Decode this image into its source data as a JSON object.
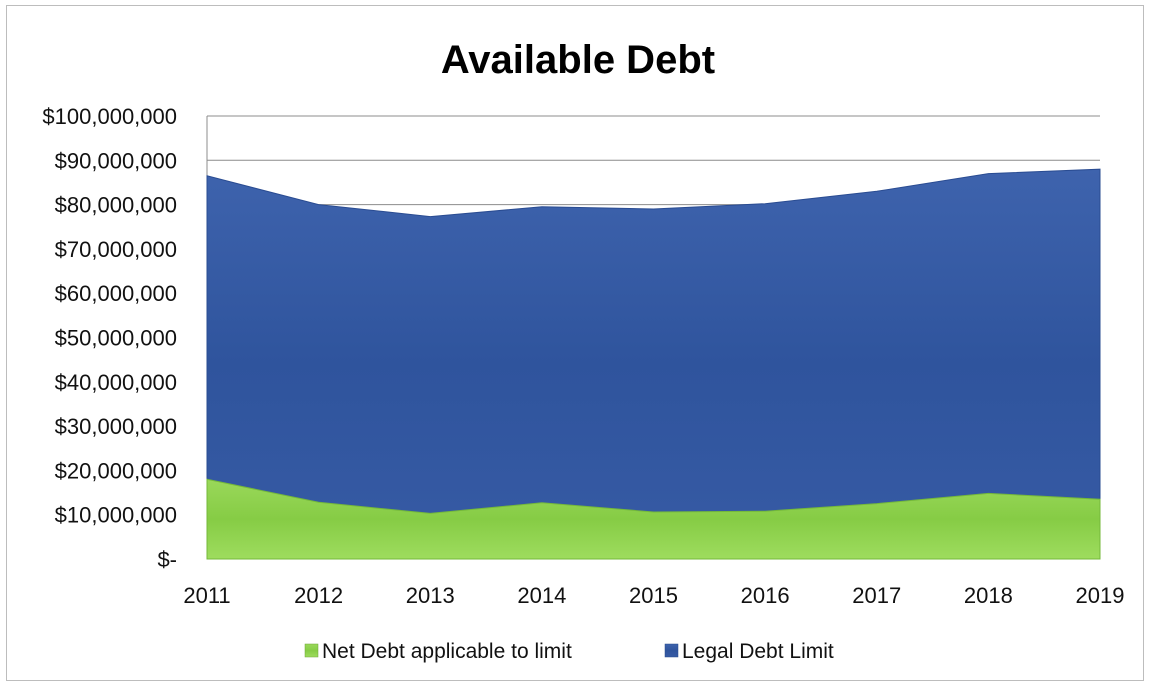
{
  "chart_data": {
    "type": "area",
    "title": "Available Debt",
    "x": [
      "2011",
      "2012",
      "2013",
      "2014",
      "2015",
      "2016",
      "2017",
      "2018",
      "2019"
    ],
    "series": [
      {
        "name": "Legal Debt Limit",
        "values": [
          86500000,
          80000000,
          77300000,
          79500000,
          79000000,
          80200000,
          83000000,
          87000000,
          88000000
        ],
        "color": "#3a5ea8"
      },
      {
        "name": "Net Debt applicable to limit",
        "values": [
          18000000,
          12800000,
          10300000,
          12700000,
          10600000,
          10800000,
          12500000,
          14800000,
          13500000
        ],
        "color": "#8fd14f"
      }
    ],
    "y_ticks": [
      {
        "value": 0,
        "label": "$-"
      },
      {
        "value": 10000000,
        "label": "$10,000,000"
      },
      {
        "value": 20000000,
        "label": "$20,000,000"
      },
      {
        "value": 30000000,
        "label": "$30,000,000"
      },
      {
        "value": 40000000,
        "label": "$40,000,000"
      },
      {
        "value": 50000000,
        "label": "$50,000,000"
      },
      {
        "value": 60000000,
        "label": "$60,000,000"
      },
      {
        "value": 70000000,
        "label": "$70,000,000"
      },
      {
        "value": 80000000,
        "label": "$80,000,000"
      },
      {
        "value": 90000000,
        "label": "$90,000,000"
      },
      {
        "value": 100000000,
        "label": "$100,000,000"
      }
    ],
    "ylim": [
      0,
      100000000
    ],
    "grid": true,
    "legend": {
      "position": "bottom",
      "entries": [
        "Net Debt applicable to limit",
        "Legal Debt Limit"
      ]
    }
  }
}
